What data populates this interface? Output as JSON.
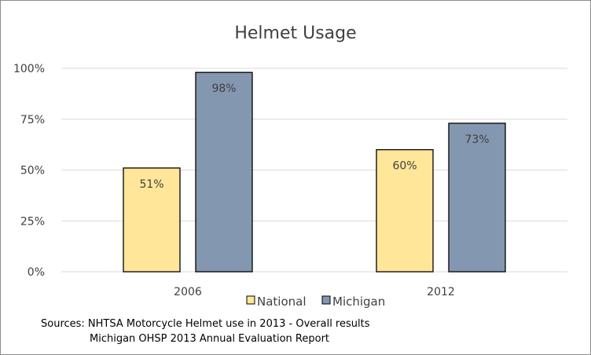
{
  "chart_data": {
    "type": "bar",
    "title": "Helmet Usage",
    "categories": [
      "2006",
      "2012"
    ],
    "series": [
      {
        "name": "National",
        "values": [
          51,
          60
        ],
        "labels": [
          "51%",
          "60%"
        ],
        "color": "#FFE699"
      },
      {
        "name": "Michigan",
        "values": [
          98,
          73
        ],
        "labels": [
          "98%",
          "73%"
        ],
        "color": "#8497B0"
      }
    ],
    "ylim": [
      0,
      100
    ],
    "yticks": [
      0,
      25,
      50,
      75,
      100
    ],
    "ytick_labels": [
      "0%",
      "25%",
      "50%",
      "75%",
      "100%"
    ],
    "grid": true,
    "legend": "bottom"
  },
  "sources": {
    "line1": "Sources: NHTSA Motorcycle Helmet use in 2013 - Overall results",
    "line2": "Michigan OHSP 2013 Annual Evaluation Report"
  }
}
